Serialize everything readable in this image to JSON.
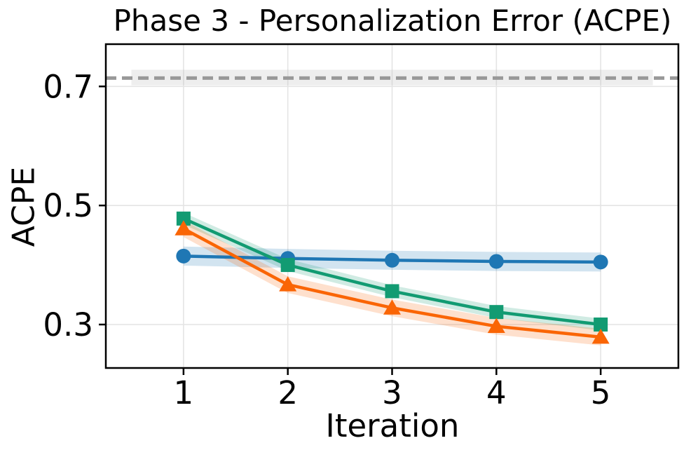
{
  "chart_data": {
    "type": "line",
    "title": "Phase 3 - Personalization Error (ACPE)",
    "xlabel": "Iteration",
    "ylabel": "ACPE",
    "x": [
      1,
      2,
      3,
      4,
      5
    ],
    "xticks": {
      "values": [
        1,
        2,
        3,
        4,
        5
      ],
      "labels": [
        "1",
        "2",
        "3",
        "4",
        "5"
      ]
    },
    "yticks": {
      "values": [
        0.3,
        0.5,
        0.7
      ],
      "labels": [
        "0.3",
        "0.5",
        "0.7"
      ]
    },
    "xlim": [
      0.255,
      5.745
    ],
    "ylim": [
      0.227,
      0.771
    ],
    "grid": true,
    "grid_color": "#e4e4e4",
    "axis_color": "#000000",
    "baseline": {
      "value": 0.714,
      "style": "dashed",
      "color": "#999999",
      "band": [
        0.702,
        0.728
      ],
      "band_x": [
        0.5,
        5.5
      ],
      "band_color": "#bbbbbb"
    },
    "series": [
      {
        "name": "blue-circle-series",
        "marker": "circle",
        "color": "#1f77b4",
        "values": [
          0.415,
          0.411,
          0.408,
          0.406,
          0.405
        ],
        "band_half": 0.016
      },
      {
        "name": "green-square-series",
        "marker": "square",
        "color": "#129b72",
        "values": [
          0.478,
          0.4,
          0.356,
          0.321,
          0.3
        ],
        "band_half": 0.01
      },
      {
        "name": "orange-triangle-series",
        "marker": "triangle",
        "color": "#fa6505",
        "values": [
          0.461,
          0.367,
          0.328,
          0.297,
          0.279
        ],
        "band_half": 0.014
      }
    ]
  }
}
